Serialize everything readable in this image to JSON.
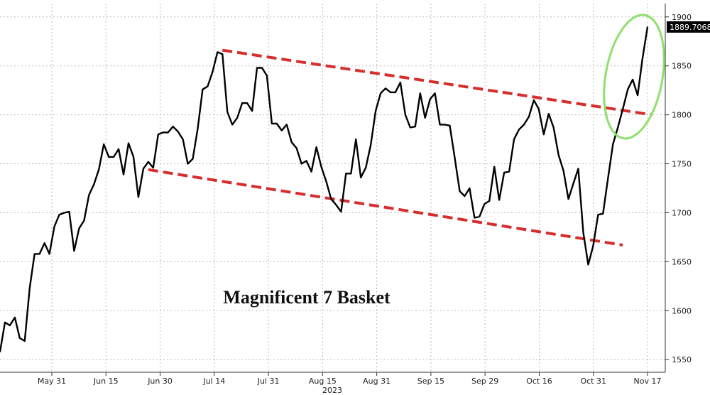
{
  "chart_data": {
    "type": "line",
    "title": "Magnificent 7 Basket",
    "xlabel": "2023",
    "ylabel": "",
    "ylim": [
      1540,
      1910
    ],
    "x_tick_labels": [
      "May 31",
      "Jun 15",
      "Jun 30",
      "Jul 14",
      "Jul 31",
      "Aug 15",
      "Aug 31",
      "Sep 15",
      "Sep 29",
      "Oct 16",
      "Oct 31",
      "Nov 17"
    ],
    "y_ticks": [
      1550,
      1600,
      1650,
      1700,
      1750,
      1800,
      1850,
      1900
    ],
    "grid": true,
    "last_value_label": "1889.7068",
    "colors": {
      "line": "#000000",
      "trend": "#d62d2d",
      "highlight": "#8ee06a",
      "grid": "#bbbbbb",
      "badge": "#000000"
    },
    "series": [
      {
        "values": [
          1558,
          1588,
          1585,
          1593,
          1572,
          1569,
          1623,
          1658,
          1658,
          1669,
          1658,
          1686,
          1698,
          1700,
          1701,
          1661,
          1684,
          1692,
          1718,
          1729,
          1744,
          1770,
          1757,
          1757,
          1765,
          1739,
          1771,
          1757,
          1716,
          1745,
          1752,
          1746,
          1780,
          1782,
          1782,
          1788,
          1783,
          1775,
          1750,
          1755,
          1786,
          1826,
          1829,
          1844,
          1864,
          1862,
          1803,
          1790,
          1797,
          1812,
          1812,
          1804,
          1848,
          1848,
          1840,
          1791,
          1791,
          1784,
          1790,
          1772,
          1766,
          1750,
          1753,
          1742,
          1767,
          1747,
          1732,
          1714,
          1708,
          1701,
          1740,
          1740,
          1775,
          1736,
          1746,
          1769,
          1804,
          1822,
          1827,
          1823,
          1823,
          1833,
          1800,
          1787,
          1788,
          1822,
          1797,
          1816,
          1822,
          1790,
          1790,
          1789,
          1756,
          1722,
          1717,
          1725,
          1695,
          1696,
          1709,
          1712,
          1747,
          1713,
          1741,
          1742,
          1775,
          1785,
          1790,
          1798,
          1815,
          1806,
          1780,
          1801,
          1787,
          1759,
          1743,
          1714,
          1730,
          1745,
          1680,
          1647,
          1666,
          1698,
          1699,
          1735,
          1770,
          1787,
          1806,
          1826,
          1836,
          1820,
          1858,
          1889.7068
        ]
      }
    ],
    "trendlines": [
      {
        "name": "upper",
        "from": {
          "index": 45,
          "value": 1866
        },
        "to": {
          "index": 132,
          "value": 1800
        }
      },
      {
        "name": "lower",
        "from": {
          "index": 30,
          "value": 1744
        },
        "to": {
          "index": 126,
          "value": 1667
        }
      }
    ]
  }
}
